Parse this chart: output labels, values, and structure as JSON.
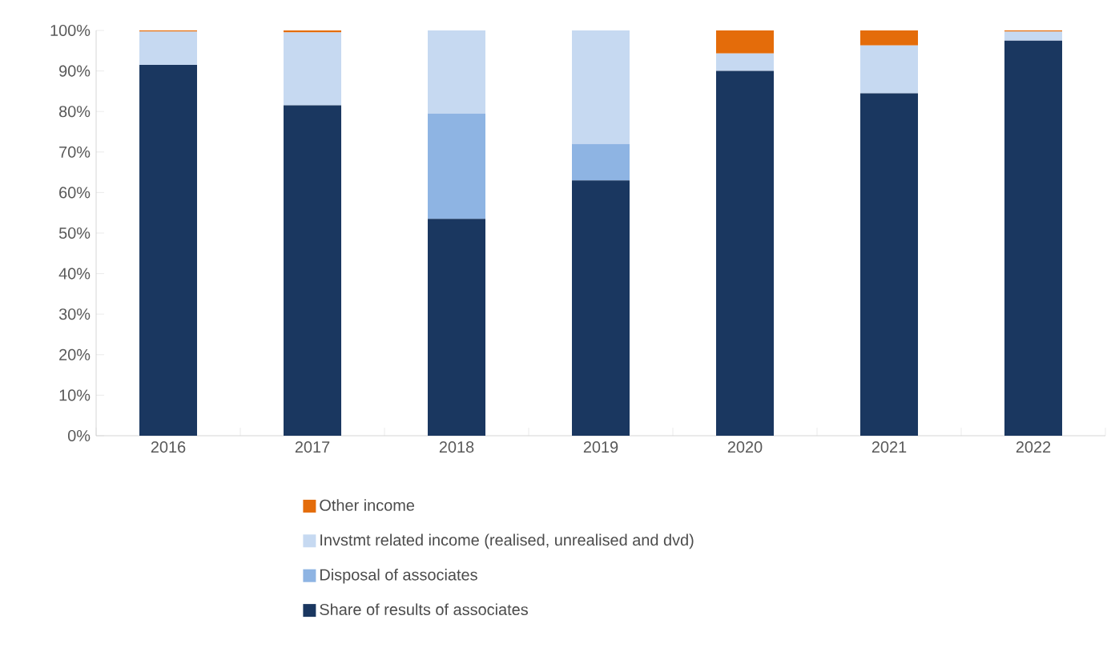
{
  "chart_data": {
    "type": "bar",
    "stacked": true,
    "categories": [
      "2016",
      "2017",
      "2018",
      "2019",
      "2020",
      "2021",
      "2022"
    ],
    "series": [
      {
        "name": "Share of results of associates",
        "color": "#1a3760",
        "values": [
          91.5,
          81.5,
          53.5,
          63,
          90,
          84.5,
          97.5
        ]
      },
      {
        "name": "Disposal of associates",
        "color": "#8eb4e3",
        "values": [
          0,
          0,
          26,
          9,
          0,
          0,
          0
        ]
      },
      {
        "name": "Invstmt related income (realised, unrealised and dvd)",
        "color": "#c6d9f1",
        "values": [
          8.2,
          18,
          20.5,
          28,
          4.3,
          11.8,
          2.2
        ]
      },
      {
        "name": "Other income",
        "color": "#e46c0a",
        "values": [
          0.3,
          0.5,
          0,
          0,
          5.7,
          3.7,
          0.3
        ]
      }
    ],
    "ylim": [
      0,
      100
    ],
    "yticks": [
      {
        "value": 0,
        "label": "0%"
      },
      {
        "value": 10,
        "label": "10%"
      },
      {
        "value": 20,
        "label": "20%"
      },
      {
        "value": 30,
        "label": "30%"
      },
      {
        "value": 40,
        "label": "40%"
      },
      {
        "value": 50,
        "label": "50%"
      },
      {
        "value": 60,
        "label": "60%"
      },
      {
        "value": 70,
        "label": "70%"
      },
      {
        "value": 80,
        "label": "80%"
      },
      {
        "value": 90,
        "label": "90%"
      },
      {
        "value": 100,
        "label": "100%"
      }
    ],
    "legend": "bottom"
  }
}
